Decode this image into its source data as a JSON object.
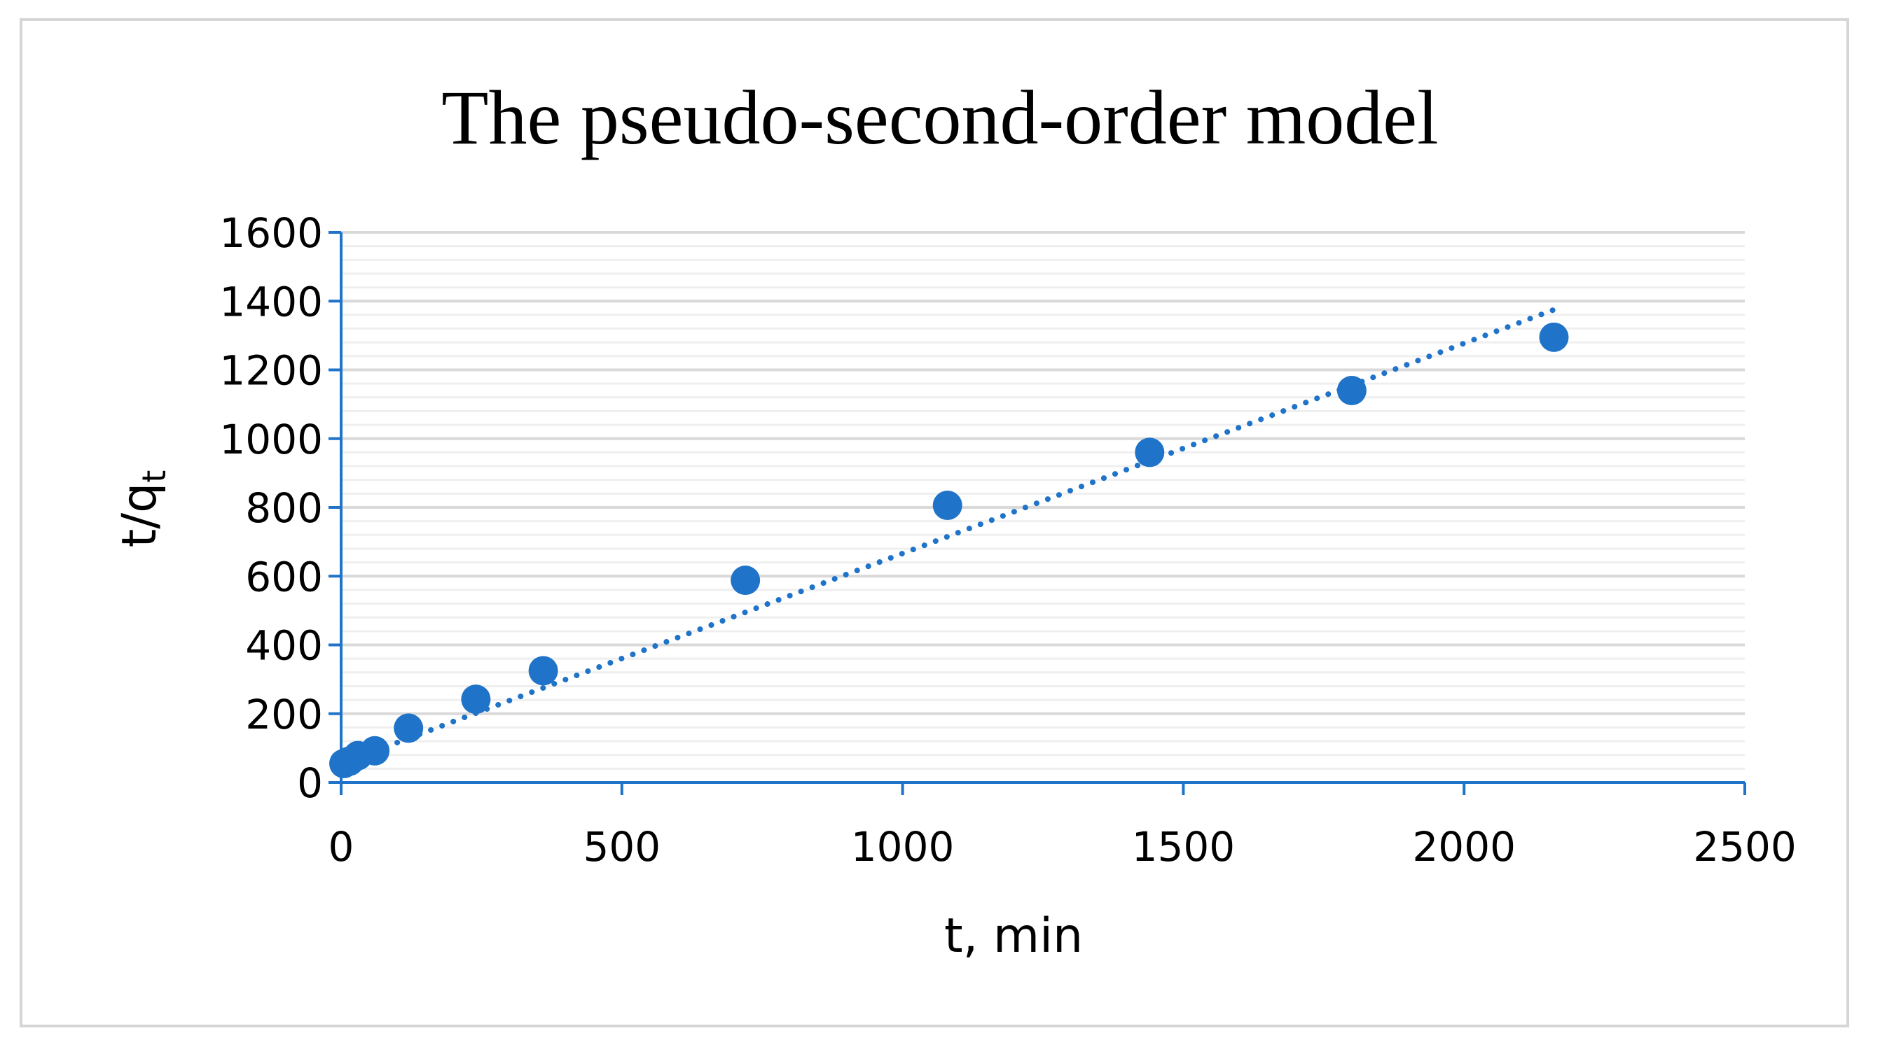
{
  "chart_data": {
    "type": "scatter",
    "title": "The pseudo-second-order model",
    "xlabel": "t, min",
    "ylabel": {
      "main": "t/q",
      "subscript": "t"
    },
    "xlim": [
      0,
      2500
    ],
    "ylim": [
      0,
      1600
    ],
    "xticks": [
      "0",
      "500",
      "1000",
      "1500",
      "2000",
      "2500"
    ],
    "yticks": [
      "0",
      "200",
      "400",
      "600",
      "800",
      "1000",
      "1200",
      "1400",
      "1600"
    ],
    "grid": true,
    "legend": "none",
    "series": [
      {
        "color": "#1f73c8",
        "marker": "circle",
        "points": [
          {
            "x": 5,
            "y": 55
          },
          {
            "x": 15,
            "y": 62
          },
          {
            "x": 30,
            "y": 78
          },
          {
            "x": 60,
            "y": 92
          },
          {
            "x": 120,
            "y": 158
          },
          {
            "x": 240,
            "y": 242
          },
          {
            "x": 360,
            "y": 325
          },
          {
            "x": 720,
            "y": 588
          },
          {
            "x": 1080,
            "y": 806
          },
          {
            "x": 1440,
            "y": 960
          },
          {
            "x": 1800,
            "y": 1140
          },
          {
            "x": 2160,
            "y": 1295
          }
        ]
      }
    ],
    "trendline": {
      "style": "dotted",
      "color": "#1f73c8",
      "from": {
        "x": 0,
        "y": 55
      },
      "to": {
        "x": 2160,
        "y": 1375
      }
    },
    "colors": {
      "axis": "#1f73c8",
      "grid_major": "#d9d9d9",
      "grid_minor": "#efefef",
      "frame": "#d6d6d6"
    }
  }
}
